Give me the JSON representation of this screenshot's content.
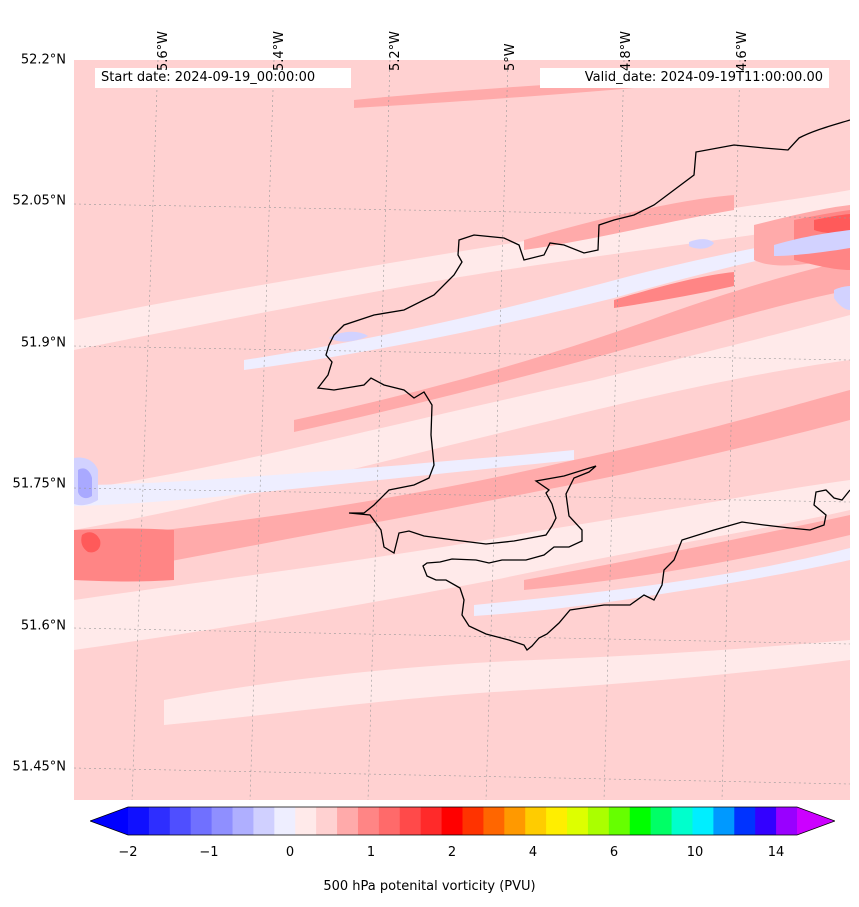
{
  "map": {
    "start_date_label": "Start date: 2024-09-19_00:00:00",
    "valid_date_label": "Valid_date: 2024-09-19T11:00:00.00",
    "latitude_labels": [
      "52.2°N",
      "52.05°N",
      "51.9°N",
      "51.75°N",
      "51.6°N",
      "51.45°N"
    ],
    "longitude_labels": [
      "5.6°W",
      "5.4°W",
      "5.2°W",
      "5°W",
      "4.8°W",
      "4.6°W"
    ],
    "field_colors": {
      "background": "#ffd1d1",
      "light": "#ffeaea",
      "neutral": "#eeeeff",
      "mid": "#ffaaaa",
      "strong": "#ff8585",
      "deep": "#ff5a5a",
      "neg_light": "#d2d2ff",
      "neg_mid": "#a9a9ff",
      "coastline": "#000000"
    }
  },
  "colorbar": {
    "title": "500 hPa potenital vorticity (PVU)",
    "tick_labels": [
      "−2",
      "−1",
      "0",
      "1",
      "2",
      "4",
      "6",
      "10",
      "14"
    ],
    "under_color": "#0000ff",
    "over_color": "#cc00ff",
    "colors": [
      "#1010ff",
      "#2e2eff",
      "#4f4fff",
      "#7070ff",
      "#8f8fff",
      "#afafff",
      "#d0d0ff",
      "#eeeeff",
      "#ffeaea",
      "#ffd1d1",
      "#ffaaaa",
      "#ff8585",
      "#ff6a6a",
      "#ff4a4a",
      "#ff2a2a",
      "#ff0000",
      "#ff3300",
      "#ff6600",
      "#ff9900",
      "#ffcc00",
      "#ffee00",
      "#ddff00",
      "#aaff00",
      "#66ff00",
      "#00ff00",
      "#00ff66",
      "#00ffcc",
      "#00eeff",
      "#0099ff",
      "#0033ff",
      "#3300ff",
      "#9900ff"
    ]
  }
}
